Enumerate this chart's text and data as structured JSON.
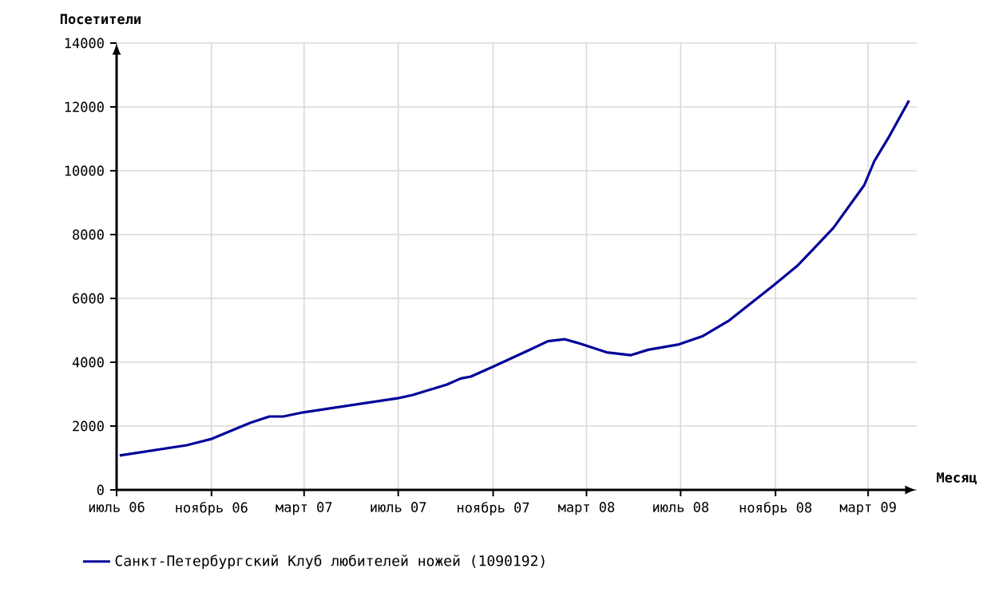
{
  "chart_data": {
    "type": "line",
    "xlabel": "Месяц",
    "ylabel": "Посетители",
    "x": [
      "2006-07-05",
      "2006-09-30",
      "2006-10-31",
      "2006-12-21",
      "2007-01-15",
      "2007-02-02",
      "2007-02-28",
      "2007-07-02",
      "2007-07-19",
      "2007-09-02",
      "2007-09-20",
      "2007-10-03",
      "2007-10-31",
      "2007-12-21",
      "2008-01-11",
      "2008-02-02",
      "2008-02-18",
      "2008-03-27",
      "2008-04-27",
      "2008-05-20",
      "2008-06-29",
      "2008-07-29",
      "2008-09-02",
      "2008-10-29",
      "2008-11-30",
      "2008-12-21",
      "2009-01-15",
      "2009-02-24",
      "2009-03-09",
      "2009-03-27",
      "2009-04-23"
    ],
    "series": [
      {
        "name": "Санкт-Петербургский Клуб любителей ножей  (1090192)",
        "color": "#000099",
        "values": [
          1080,
          1400,
          1590,
          2100,
          2300,
          2300,
          2430,
          2880,
          2970,
          3300,
          3490,
          3550,
          3850,
          4420,
          4660,
          4720,
          4610,
          4310,
          4220,
          4390,
          4560,
          4810,
          5310,
          6400,
          7040,
          7570,
          8210,
          9550,
          10300,
          11020,
          12200
        ]
      }
    ],
    "xlim": [
      "2006-07-01",
      "2009-05-03"
    ],
    "xticks": [
      {
        "value": "2006-07-01",
        "label": "июль 06"
      },
      {
        "value": "2006-11-01",
        "label": "ноябрь 06"
      },
      {
        "value": "2007-03-01",
        "label": "март 07"
      },
      {
        "value": "2007-07-01",
        "label": "июль 07"
      },
      {
        "value": "2007-11-01",
        "label": "ноябрь 07"
      },
      {
        "value": "2008-03-01",
        "label": "март 08"
      },
      {
        "value": "2008-07-01",
        "label": "июль 08"
      },
      {
        "value": "2008-11-01",
        "label": "ноябрь 08"
      },
      {
        "value": "2009-03-01",
        "label": "март 09"
      }
    ],
    "ylim": [
      0,
      14000
    ],
    "yticks": [
      0,
      2000,
      4000,
      6000,
      8000,
      10000,
      12000,
      14000
    ],
    "grid": true,
    "legend": "bottom left",
    "marker": "none",
    "line_style": "solid"
  }
}
